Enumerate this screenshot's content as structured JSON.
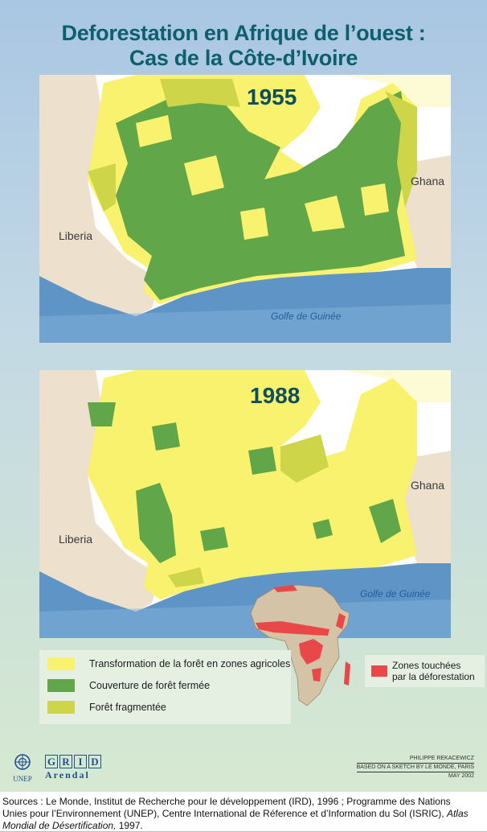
{
  "title": {
    "line1": "Deforestation en Afrique de l’ouest :",
    "line2": "Cas de la Côte-d’Ivoire"
  },
  "maps": [
    {
      "year": "1955",
      "country_left": "Liberia",
      "country_right": "Ghana",
      "gulf": "Golfe de Guinée"
    },
    {
      "year": "1988",
      "country_left": "Liberia",
      "country_right": "Ghana",
      "gulf": "Golfe de Guinée"
    }
  ],
  "legend": {
    "items": [
      {
        "label": "Transformation de la forêt en zones agricoles",
        "color": "#f9f26e"
      },
      {
        "label": "Couverture de forêt fermée",
        "color": "#62a64a"
      },
      {
        "label": "Forêt fragmentée",
        "color": "#cfd548"
      }
    ],
    "deforestation": {
      "line1": "Zones touchées",
      "line2": "par la déforestation",
      "color": "#e84848"
    }
  },
  "colors": {
    "ocean": "#5f94c7",
    "land_neighbors": "#ede0cd",
    "sahel": "#fdfbd6",
    "africa": "#d4c3a6",
    "title": "#0d5f6e"
  },
  "credit": {
    "line1": "PHILIPPE REKACEWICZ",
    "line2": "BASED ON A SKETCH BY LE MONDE, PARIS",
    "line3": "MAY 2002"
  },
  "logos": {
    "unep": "UNEP",
    "unep_icon": "un-emblem-icon",
    "grid": [
      "G",
      "R",
      "I",
      "D"
    ],
    "arendal": "Arendal"
  },
  "sources": {
    "line1": "Sources : Le Monde, Institut de Recherche pour le développement (IRD), 1996 ; Programme des Nations",
    "line2": "Unies pour l’Environnement (UNEP), Centre International de Réference et d’Information du Sol (ISRIC),",
    "line2_italic": "Atlas",
    "line3_italic": "Mondial de Désertification,",
    "line3_rest": " 1997."
  }
}
